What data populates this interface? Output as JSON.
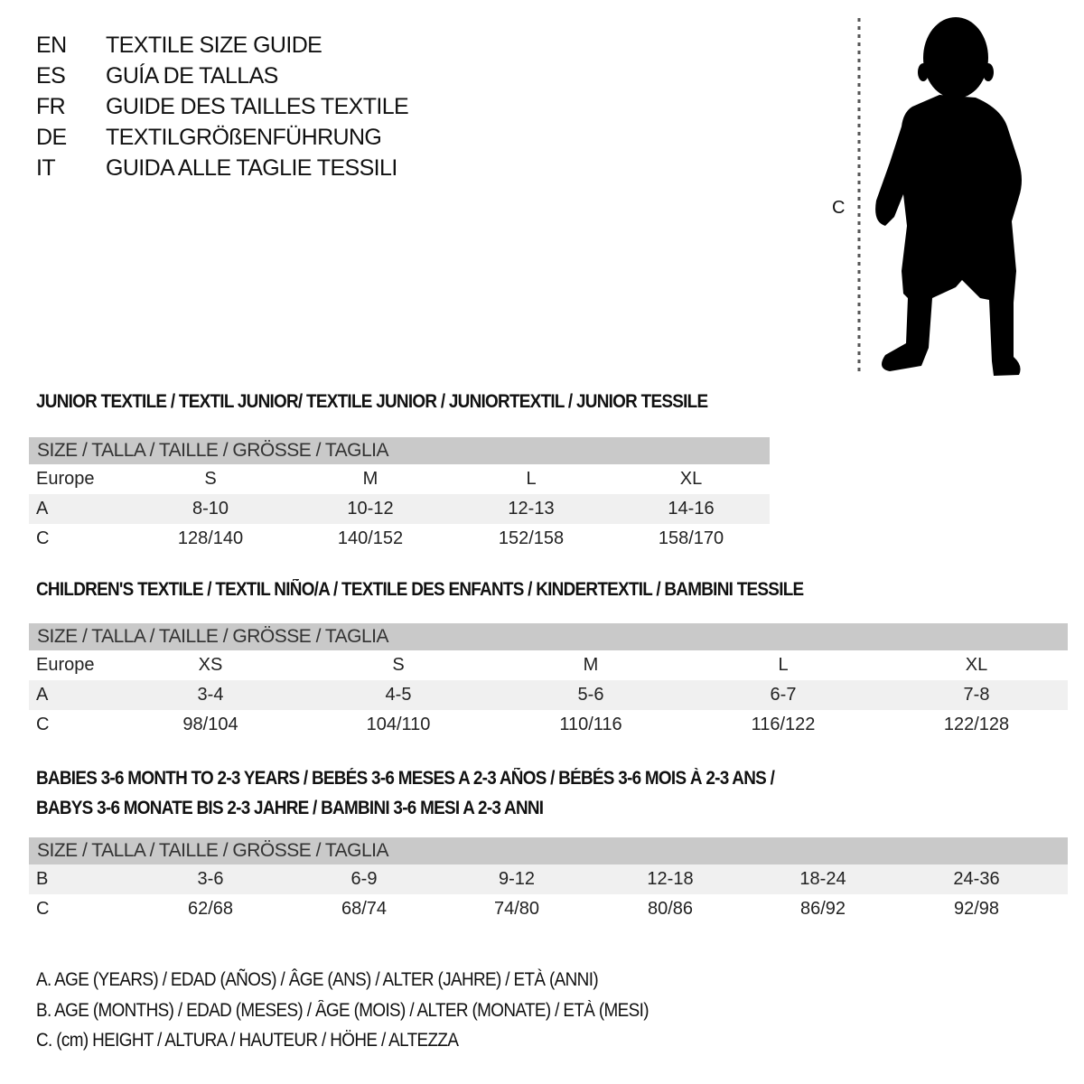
{
  "titles": [
    {
      "code": "EN",
      "text": "TEXTILE SIZE GUIDE"
    },
    {
      "code": "ES",
      "text": "GUÍA DE TALLAS"
    },
    {
      "code": "FR",
      "text": "GUIDE DES TAILLES TEXTILE"
    },
    {
      "code": "DE",
      "text": "TEXTILGRÖßENFÜHRUNG"
    },
    {
      "code": "IT",
      "text": "GUIDA ALLE TAGLIE TESSILI"
    }
  ],
  "figure": {
    "measure_label": "C",
    "icon": "child-silhouette-icon"
  },
  "colors": {
    "header_bar": "#c9c9c9",
    "shaded_row": "#f0f0f0"
  },
  "tables": [
    {
      "section_title": [
        "JUNIOR TEXTILE / TEXTIL JUNIOR/ TEXTILE JUNIOR / JUNIORTEXTIL / JUNIOR TESSILE"
      ],
      "header": "SIZE / TALLA / TAILLE / GRÖSSE / TAGLIA",
      "rows": [
        {
          "label": "Europe",
          "values": [
            "S",
            "M",
            "L",
            "XL"
          ]
        },
        {
          "label": "A",
          "values": [
            "8-10",
            "10-12",
            "12-13",
            "14-16"
          ]
        },
        {
          "label": "C",
          "values": [
            "128/140",
            "140/152",
            "152/158",
            "158/170"
          ]
        }
      ]
    },
    {
      "section_title": [
        "CHILDREN'S TEXTILE / TEXTIL NIÑO/A / TEXTILE DES ENFANTS / KINDERTEXTIL / BAMBINI TESSILE"
      ],
      "header": "SIZE / TALLA / TAILLE / GRÖSSE / TAGLIA",
      "rows": [
        {
          "label": "Europe",
          "values": [
            "XS",
            "S",
            "M",
            "L",
            "XL"
          ]
        },
        {
          "label": "A",
          "values": [
            "3-4",
            "4-5",
            "5-6",
            "6-7",
            "7-8"
          ]
        },
        {
          "label": "C",
          "values": [
            "98/104",
            "104/110",
            "110/116",
            "116/122",
            "122/128"
          ]
        }
      ]
    },
    {
      "section_title": [
        "BABIES 3-6 MONTH TO 2-3 YEARS / BEBÉS 3-6 MESES A 2-3 AÑOS / BÉBÉS 3-6 MOIS À 2-3 ANS /",
        "BABYS 3-6 MONATE BIS 2-3 JAHRE / BAMBINI 3-6 MESI A 2-3 ANNI"
      ],
      "header": "SIZE / TALLA / TAILLE / GRÖSSE / TAGLIA",
      "rows": [
        {
          "label": "B",
          "values": [
            "3-6",
            "6-9",
            "9-12",
            "12-18",
            "18-24",
            "24-36"
          ]
        },
        {
          "label": "C",
          "values": [
            "62/68",
            "68/74",
            "74/80",
            "80/86",
            "86/92",
            "92/98"
          ]
        }
      ]
    }
  ],
  "legend": [
    "A. AGE (YEARS) / EDAD (AÑOS) / ÂGE (ANS) / ALTER (JAHRE) / ETÀ (ANNI)",
    "B. AGE (MONTHS) / EDAD (MESES) / ÂGE (MOIS) / ALTER (MONATE) / ETÀ (MESI)",
    "C. (cm) HEIGHT / ALTURA / HAUTEUR / HÖHE / ALTEZZA"
  ]
}
